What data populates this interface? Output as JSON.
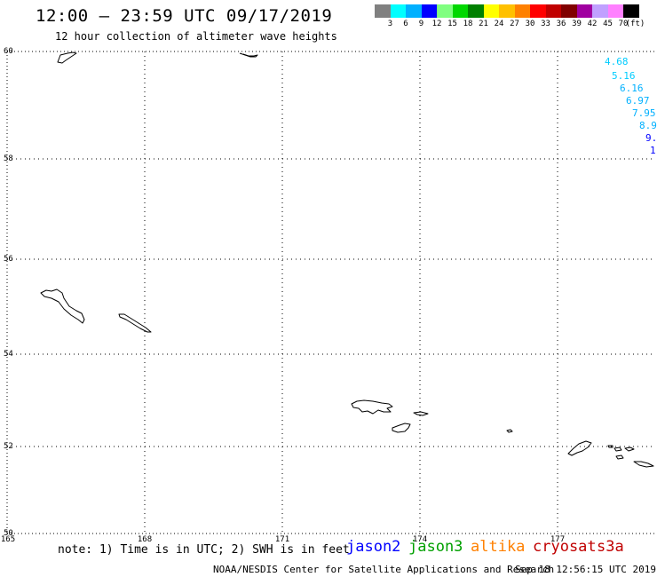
{
  "header": {
    "title": "12:00 – 23:59 UTC 09/17/2019",
    "subtitle": "12 hour collection of altimeter wave heights"
  },
  "legend": {
    "unit": "(ft)",
    "swatches": [
      {
        "label": "3",
        "color": "#808080"
      },
      {
        "label": "6",
        "color": "#00ffff"
      },
      {
        "label": "9",
        "color": "#00b0ff"
      },
      {
        "label": "12",
        "color": "#0000ff"
      },
      {
        "label": "15",
        "color": "#80ff80"
      },
      {
        "label": "18",
        "color": "#00d800"
      },
      {
        "label": "21",
        "color": "#008000"
      },
      {
        "label": "24",
        "color": "#ffff00"
      },
      {
        "label": "27",
        "color": "#ffc000"
      },
      {
        "label": "30",
        "color": "#ff8000"
      },
      {
        "label": "33",
        "color": "#ff0000"
      },
      {
        "label": "36",
        "color": "#c00000"
      },
      {
        "label": "39",
        "color": "#800000"
      },
      {
        "label": "42",
        "color": "#a000a0"
      },
      {
        "label": "45",
        "color": "#c0a0ff"
      },
      {
        "label": "70",
        "color": "#ff80ff"
      },
      {
        "label": "",
        "color": "#000000"
      }
    ]
  },
  "map": {
    "lon_ticks": [
      "165",
      "168",
      "171",
      "174",
      "177"
    ],
    "lat_ticks": [
      "50",
      "52",
      "54",
      "56",
      "58",
      "60"
    ],
    "wave_labels": [
      {
        "text": "4.68",
        "color": "#00ccff"
      },
      {
        "text": "5.16",
        "color": "#00ccff"
      },
      {
        "text": "6.16",
        "color": "#00b0ff"
      },
      {
        "text": "6.97",
        "color": "#00b0ff"
      },
      {
        "text": "7.95",
        "color": "#00b0ff"
      },
      {
        "text": "8.9",
        "color": "#00b0ff"
      },
      {
        "text": "9.",
        "color": "#0000ff"
      },
      {
        "text": "1",
        "color": "#0000ff"
      }
    ]
  },
  "footer": {
    "note": "note: 1) Time is in UTC; 2) SWH is in feet",
    "satellites": [
      {
        "name": "jason2",
        "color": "#0000ff"
      },
      {
        "name": "jason3",
        "color": "#00a000"
      },
      {
        "name": "altika",
        "color": "#ff8000"
      },
      {
        "name": "cryosat",
        "color": "#c00000"
      },
      {
        "name": "s3a",
        "color": "#c00000"
      }
    ],
    "credit": "NOAA/NESDIS Center for Satellite Applications and Research",
    "timestamp": "Sep 18 12:56:15 UTC 2019"
  }
}
